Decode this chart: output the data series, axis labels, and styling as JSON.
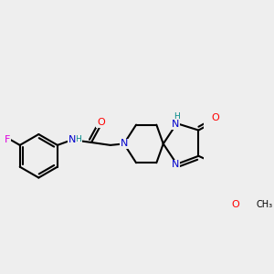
{
  "bg_color": "#eeeeee",
  "atom_colors": {
    "C": "#000000",
    "N": "#0000cc",
    "O": "#ff0000",
    "F": "#dd00dd",
    "H": "#008888"
  }
}
